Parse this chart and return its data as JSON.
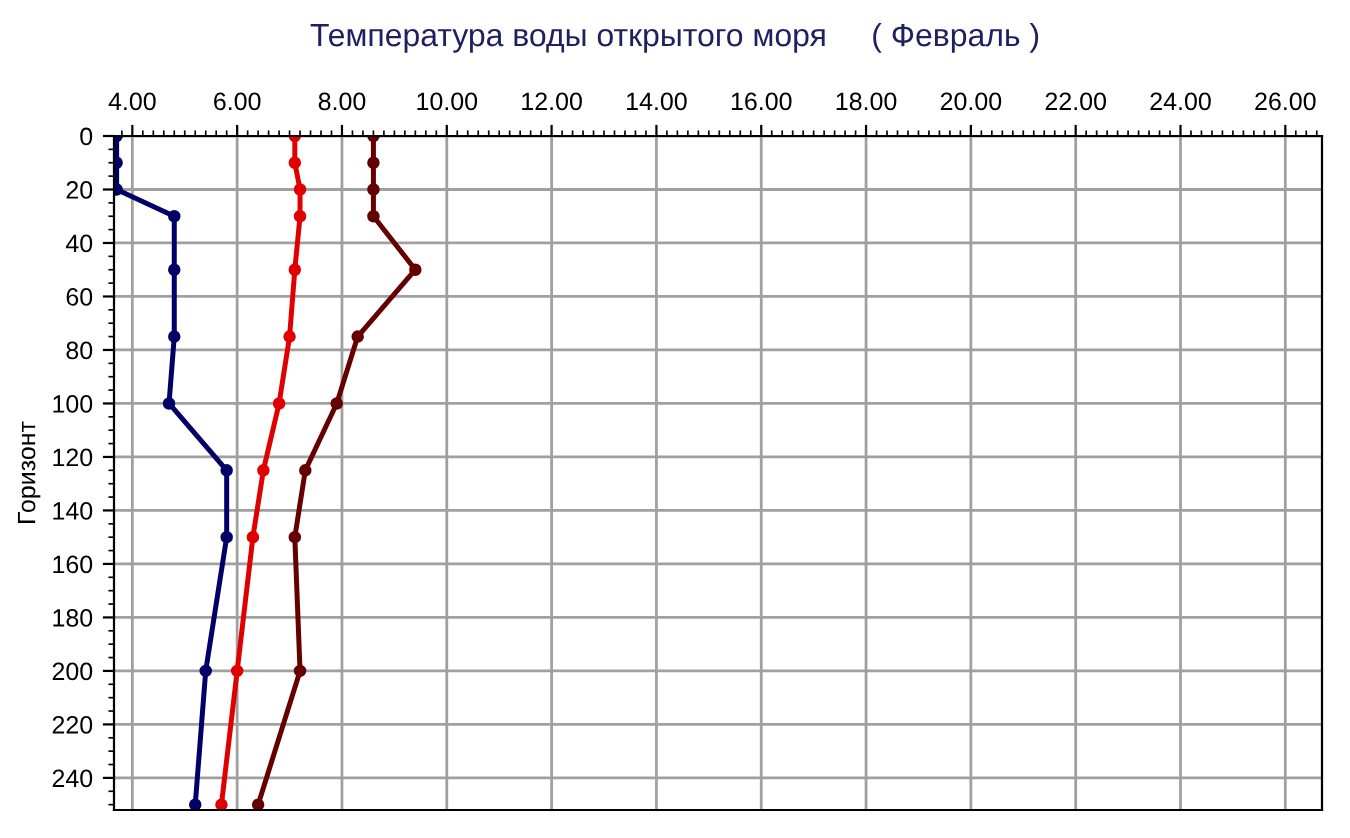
{
  "chart_data": {
    "type": "line",
    "title": "Температура воды открытого моря     ( Февраль )",
    "ylabel": "Горизонт",
    "series": [
      {
        "color": "#000066",
        "x": [
          3.7,
          3.7,
          3.7,
          4.8,
          4.8,
          4.8,
          4.7,
          5.8,
          5.8,
          5.4,
          5.2
        ],
        "values": [
          0,
          10,
          20,
          30,
          50,
          75,
          100,
          125,
          150,
          200,
          250
        ]
      },
      {
        "color": "#e00000",
        "x": [
          7.1,
          7.1,
          7.2,
          7.2,
          7.1,
          7.0,
          6.8,
          6.5,
          6.3,
          6.0,
          5.7
        ],
        "values": [
          0,
          10,
          20,
          30,
          50,
          75,
          100,
          125,
          150,
          200,
          250
        ]
      },
      {
        "color": "#660000",
        "x": [
          8.6,
          8.6,
          8.6,
          8.6,
          9.4,
          8.3,
          7.9,
          7.3,
          7.1,
          7.2,
          6.4
        ],
        "values": [
          0,
          10,
          20,
          30,
          50,
          75,
          100,
          125,
          150,
          200,
          250
        ]
      }
    ],
    "xlim": [
      3.65,
      26.7
    ],
    "xticks": [
      {
        "value": 4,
        "label": "4.00"
      },
      {
        "value": 6,
        "label": "6.00"
      },
      {
        "value": 8,
        "label": "8.00"
      },
      {
        "value": 10,
        "label": "10.00"
      },
      {
        "value": 12,
        "label": "12.00"
      },
      {
        "value": 14,
        "label": "14.00"
      },
      {
        "value": 16,
        "label": "16.00"
      },
      {
        "value": 18,
        "label": "18.00"
      },
      {
        "value": 20,
        "label": "20.00"
      },
      {
        "value": 22,
        "label": "22.00"
      },
      {
        "value": 24,
        "label": "24.00"
      },
      {
        "value": 26,
        "label": "26.00"
      }
    ],
    "ylim": [
      252,
      0
    ],
    "yticks": [
      0,
      20,
      40,
      60,
      80,
      100,
      120,
      140,
      160,
      180,
      200,
      220,
      240
    ],
    "grid": true,
    "marker": "circle",
    "line_style": "solid"
  }
}
